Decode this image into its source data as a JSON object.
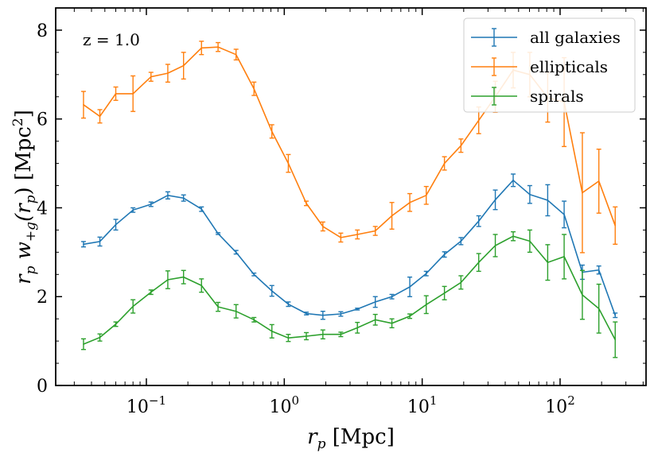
{
  "chart_data": {
    "type": "line",
    "annotation": "z = 1.0",
    "xlabel": "r_p [Mpc]",
    "ylabel": "r_p w_+g(r_p) [Mpc^2]",
    "xscale": "log",
    "xlim": [
      0.022,
      420
    ],
    "ylim": [
      0,
      8.5
    ],
    "yticks": [
      0,
      2,
      4,
      6,
      8
    ],
    "xticks": [
      {
        "value": 0.1,
        "base": "10",
        "exp": "−1"
      },
      {
        "value": 1,
        "base": "10",
        "exp": "0"
      },
      {
        "value": 10,
        "base": "10",
        "exp": "1"
      },
      {
        "value": 100,
        "base": "10",
        "exp": "2"
      }
    ],
    "legend_position": "top-right",
    "grid": false,
    "x": [
      0.035,
      0.046,
      0.06,
      0.08,
      0.108,
      0.143,
      0.186,
      0.251,
      0.331,
      0.447,
      0.603,
      0.813,
      1.07,
      1.445,
      1.905,
      2.57,
      3.39,
      4.57,
      6.03,
      8.13,
      10.7,
      14.5,
      19.1,
      25.7,
      33.9,
      45.7,
      60.3,
      81.3,
      107,
      145,
      191,
      251
    ],
    "series": [
      {
        "name": "all galaxies",
        "color": "#1f77b4",
        "values": [
          3.18,
          3.24,
          3.62,
          3.95,
          4.08,
          4.28,
          4.22,
          3.97,
          3.42,
          3.0,
          2.5,
          2.13,
          1.83,
          1.62,
          1.58,
          1.61,
          1.72,
          1.88,
          2.0,
          2.22,
          2.52,
          2.95,
          3.25,
          3.7,
          4.18,
          4.62,
          4.3,
          4.17,
          3.85,
          2.55,
          2.6,
          1.58
        ],
        "errors": [
          0.06,
          0.1,
          0.12,
          0.05,
          0.05,
          0.08,
          0.07,
          0.05,
          0.02,
          0.04,
          0.03,
          0.12,
          0.05,
          0.03,
          0.09,
          0.05,
          0.02,
          0.12,
          0.05,
          0.22,
          0.05,
          0.06,
          0.08,
          0.12,
          0.22,
          0.14,
          0.2,
          0.35,
          0.3,
          0.16,
          0.09,
          0.05
        ]
      },
      {
        "name": "ellipticals",
        "color": "#ff7f0e",
        "values": [
          6.32,
          6.06,
          6.57,
          6.57,
          6.95,
          7.03,
          7.2,
          7.6,
          7.62,
          7.45,
          6.68,
          5.72,
          5.0,
          4.1,
          3.58,
          3.33,
          3.4,
          3.48,
          3.82,
          4.12,
          4.28,
          5.0,
          5.4,
          5.97,
          6.5,
          7.1,
          7.0,
          6.48,
          6.38,
          4.34,
          4.6,
          3.6
        ],
        "errors": [
          0.3,
          0.15,
          0.15,
          0.4,
          0.1,
          0.2,
          0.3,
          0.15,
          0.1,
          0.12,
          0.15,
          0.15,
          0.2,
          0.05,
          0.1,
          0.1,
          0.1,
          0.1,
          0.3,
          0.2,
          0.2,
          0.15,
          0.15,
          0.3,
          0.35,
          0.4,
          0.5,
          0.55,
          1.0,
          1.35,
          0.72,
          0.42
        ]
      },
      {
        "name": "spirals",
        "color": "#2ca02c",
        "values": [
          0.93,
          1.08,
          1.38,
          1.78,
          2.1,
          2.38,
          2.44,
          2.25,
          1.77,
          1.67,
          1.48,
          1.22,
          1.07,
          1.11,
          1.15,
          1.15,
          1.3,
          1.48,
          1.4,
          1.56,
          1.82,
          2.08,
          2.32,
          2.77,
          3.15,
          3.36,
          3.25,
          2.77,
          2.9,
          2.04,
          1.73,
          1.03
        ],
        "errors": [
          0.12,
          0.08,
          0.05,
          0.15,
          0.05,
          0.2,
          0.15,
          0.15,
          0.1,
          0.15,
          0.05,
          0.15,
          0.08,
          0.08,
          0.1,
          0.05,
          0.12,
          0.12,
          0.1,
          0.05,
          0.2,
          0.15,
          0.15,
          0.2,
          0.25,
          0.1,
          0.25,
          0.4,
          0.5,
          0.55,
          0.55,
          0.4
        ]
      }
    ]
  }
}
